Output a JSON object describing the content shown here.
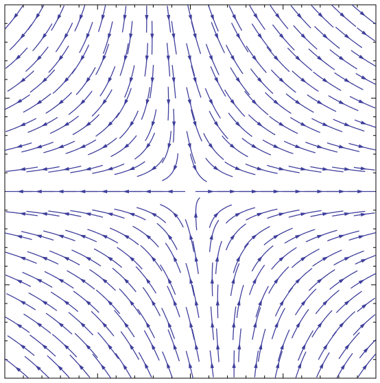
{
  "chart_data": {
    "type": "stream",
    "field": {
      "vx": [
        1,
        0.25
      ],
      "vy": [
        0,
        -1
      ]
    },
    "color": "#3f3f9c",
    "xlim": [
      -1,
      1
    ],
    "ylim": [
      -1,
      1
    ],
    "xticks": [
      -1,
      -0.9,
      -0.8,
      -0.7,
      -0.6,
      -0.5,
      -0.4,
      -0.3,
      -0.2,
      -0.1,
      0,
      0.1,
      0.2,
      0.3,
      0.4,
      0.5,
      0.6,
      0.7,
      0.8,
      0.9,
      1
    ],
    "yticks": [
      -1,
      -0.9,
      -0.8,
      -0.7,
      -0.6,
      -0.5,
      -0.4,
      -0.3,
      -0.2,
      -0.1,
      0,
      0.1,
      0.2,
      0.3,
      0.4,
      0.5,
      0.6,
      0.7,
      0.8,
      0.9,
      1
    ]
  }
}
